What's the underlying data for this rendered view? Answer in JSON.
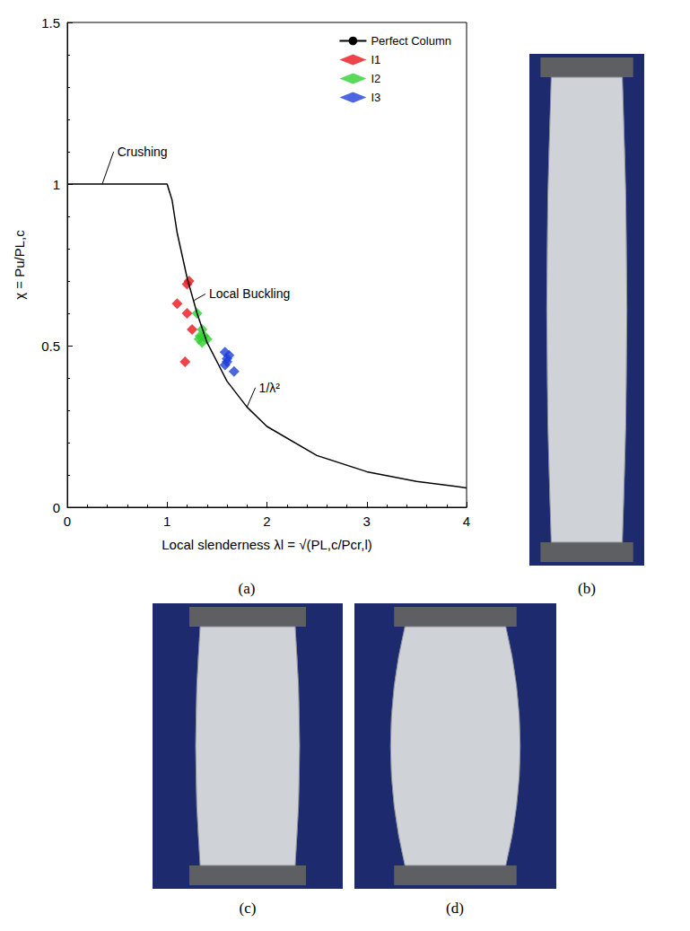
{
  "chart_data": {
    "type": "scatter",
    "xlabel": "Local slenderness λl = √(PL,c/Pcr,l)",
    "ylabel": "χ = Pu/PL,c",
    "xlim": [
      0,
      4
    ],
    "xticks": [
      0,
      1,
      2,
      3,
      4
    ],
    "ylim": [
      0,
      1.5
    ],
    "yticks": [
      0,
      0.5,
      1,
      1.5
    ],
    "grid": false,
    "legend": "upper right",
    "series": [
      {
        "name": "Perfect Column",
        "type": "line",
        "color": "#000000",
        "line_style": "solid",
        "x": [
          0,
          1,
          1.05,
          1.1,
          1.2,
          1.3,
          1.4,
          1.5,
          1.6,
          1.8,
          2,
          2.5,
          3,
          3.5,
          4
        ],
        "values": [
          1,
          1,
          0.95,
          0.85,
          0.71,
          0.6,
          0.51,
          0.45,
          0.39,
          0.31,
          0.25,
          0.16,
          0.11,
          0.08,
          0.06
        ]
      },
      {
        "name": "I1",
        "type": "scatter",
        "marker": "diamond",
        "color": "#e8141b",
        "x": [
          1.1,
          1.18,
          1.2,
          1.22,
          1.2,
          1.25
        ],
        "values": [
          0.63,
          0.45,
          0.69,
          0.7,
          0.6,
          0.55
        ]
      },
      {
        "name": "I2",
        "type": "scatter",
        "marker": "diamond",
        "color": "#2fcf2f",
        "x": [
          1.3,
          1.32,
          1.35,
          1.37,
          1.4,
          1.35,
          1.33
        ],
        "values": [
          0.6,
          0.52,
          0.55,
          0.53,
          0.52,
          0.51,
          0.53
        ]
      },
      {
        "name": "I3",
        "type": "scatter",
        "marker": "diamond",
        "color": "#1f3fd8",
        "x": [
          1.58,
          1.6,
          1.62,
          1.58,
          1.67,
          1.6
        ],
        "values": [
          0.48,
          0.45,
          0.47,
          0.44,
          0.42,
          0.46
        ]
      }
    ],
    "annotations": [
      {
        "text": "Crushing",
        "x": 0.5,
        "y": 1.1,
        "to": [
          0.35,
          1.0
        ]
      },
      {
        "text": "Local Buckling",
        "x": 1.42,
        "y": 0.66,
        "to": [
          1.27,
          0.64
        ]
      },
      {
        "text": "1/λ²",
        "x": 1.92,
        "y": 0.37,
        "to": [
          1.8,
          0.31
        ]
      }
    ]
  },
  "figure": {
    "chart_label": "(a)",
    "photo_labels": [
      "(b)",
      "(c)",
      "(d)"
    ]
  }
}
